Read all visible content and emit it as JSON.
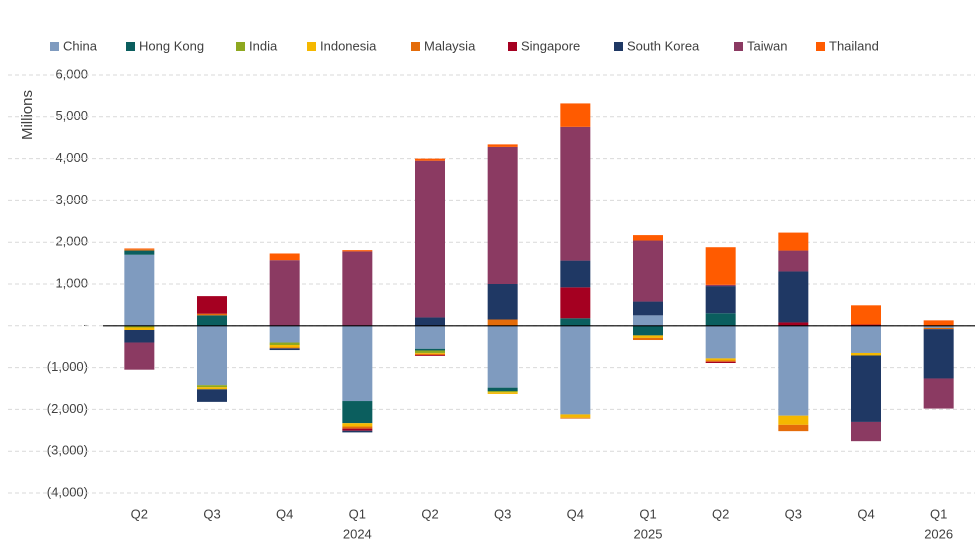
{
  "chart_data": {
    "type": "stacked_bar",
    "y_label": "Millions",
    "categories": [
      "Q2",
      "Q3",
      "Q4",
      "Q1",
      "Q2",
      "Q3",
      "Q4",
      "Q1",
      "Q2",
      "Q3",
      "Q4",
      "Q1"
    ],
    "years": [
      null,
      null,
      null,
      "2024",
      null,
      null,
      null,
      "2025",
      null,
      null,
      null,
      "2026"
    ],
    "ylim": [
      -4000,
      6000
    ],
    "yticks": [
      {
        "value": -4000,
        "label": "(4,000)"
      },
      {
        "value": -3000,
        "label": "(3,000)"
      },
      {
        "value": -2000,
        "label": "(2,000)"
      },
      {
        "value": -1000,
        "label": "(1,000)"
      },
      {
        "value": 0,
        "label": "-"
      },
      {
        "value": 1000,
        "label": "1,000"
      },
      {
        "value": 2000,
        "label": "2,000"
      },
      {
        "value": 3000,
        "label": "3,000"
      },
      {
        "value": 4000,
        "label": "4,000"
      },
      {
        "value": 5000,
        "label": "5,000"
      },
      {
        "value": 6000,
        "label": "6,000"
      }
    ],
    "grid": true,
    "legend": "top",
    "series": [
      {
        "name": "China",
        "color": "#7f9bbf",
        "values": [
          1700,
          -1420,
          -400,
          -1800,
          -550,
          -1480,
          -2120,
          250,
          -780,
          -2150,
          -650,
          -50
        ]
      },
      {
        "name": "Hong Kong",
        "color": "#0b5e5e",
        "values": [
          100,
          250,
          0,
          -530,
          -40,
          -80,
          180,
          -230,
          300,
          0,
          0,
          0
        ]
      },
      {
        "name": "India",
        "color": "#8ea820",
        "values": [
          -40,
          -50,
          -60,
          0,
          -60,
          -30,
          0,
          0,
          0,
          0,
          0,
          0
        ]
      },
      {
        "name": "Indonesia",
        "color": "#f5b800",
        "values": [
          -60,
          -50,
          -60,
          -80,
          -20,
          -40,
          -80,
          -60,
          -50,
          -220,
          -60,
          0
        ]
      },
      {
        "name": "Malaysia",
        "color": "#e46c0a",
        "values": [
          30,
          40,
          -20,
          -50,
          -30,
          150,
          -20,
          -50,
          -30,
          -150,
          0,
          -30
        ]
      },
      {
        "name": "Singapore",
        "color": "#a50021",
        "values": [
          0,
          420,
          0,
          -50,
          -20,
          0,
          740,
          0,
          -30,
          80,
          30,
          0
        ]
      },
      {
        "name": "South Korea",
        "color": "#1f3864",
        "values": [
          -300,
          -300,
          -40,
          -40,
          200,
          850,
          640,
          330,
          650,
          1220,
          -1590,
          -1180
        ]
      },
      {
        "name": "Taiwan",
        "color": "#8b3a62",
        "values": [
          -650,
          0,
          1570,
          1780,
          3750,
          3280,
          3200,
          1460,
          30,
          500,
          -460,
          -720
        ]
      },
      {
        "name": "Thailand",
        "color": "#ff5b00",
        "values": [
          20,
          0,
          160,
          30,
          50,
          60,
          560,
          130,
          900,
          430,
          460,
          130
        ]
      }
    ]
  }
}
